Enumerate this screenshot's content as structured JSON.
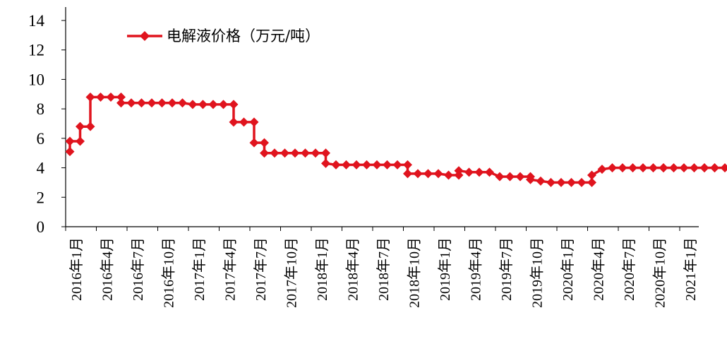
{
  "chart_data": {
    "type": "line",
    "title": "",
    "xlabel": "",
    "ylabel": "",
    "ylim": [
      0,
      14
    ],
    "yticks": [
      "0",
      "2",
      "4",
      "6",
      "8",
      "10",
      "12",
      "14"
    ],
    "xtick_labels": [
      "2016年1月",
      "2016年4月",
      "2016年7月",
      "2016年10月",
      "2017年1月",
      "2017年4月",
      "2017年7月",
      "2017年10月",
      "2018年1月",
      "2018年4月",
      "2018年7月",
      "2018年10月",
      "2019年1月",
      "2019年4月",
      "2019年7月",
      "2019年10月",
      "2020年1月",
      "2020年4月",
      "2020年7月",
      "2020年10月",
      "2021年1月"
    ],
    "grid": false,
    "legend_position": "top-left",
    "series": [
      {
        "name": "电解液价格（万元/吨）",
        "color": "#e0141e",
        "x": [
          0,
          0,
          1,
          1,
          2,
          2,
          3,
          4,
          5,
          5,
          6,
          7,
          8,
          9,
          10,
          11,
          12,
          13,
          14,
          15,
          16,
          16,
          17,
          18,
          18,
          19,
          19,
          20,
          21,
          22,
          23,
          24,
          25,
          25,
          26,
          27,
          28,
          29,
          30,
          31,
          32,
          33,
          33,
          34,
          35,
          36,
          37,
          38,
          38,
          39,
          40,
          41,
          42,
          43,
          44,
          45,
          45,
          46,
          47,
          48,
          49,
          50,
          51,
          51,
          52,
          53,
          54,
          55,
          56,
          57,
          58,
          58,
          59,
          60,
          61,
          62,
          62,
          63,
          63,
          64
        ],
        "y": [
          5.1,
          5.8,
          5.8,
          6.8,
          6.8,
          8.8,
          8.8,
          8.8,
          8.8,
          8.4,
          8.4,
          8.4,
          8.4,
          8.4,
          8.4,
          8.4,
          8.3,
          8.3,
          8.3,
          8.3,
          8.3,
          7.1,
          7.1,
          7.1,
          5.7,
          5.7,
          5.0,
          5.0,
          5.0,
          5.0,
          5.0,
          5.0,
          5.0,
          4.3,
          4.2,
          4.2,
          4.2,
          4.2,
          4.2,
          4.2,
          4.2,
          4.2,
          3.6,
          3.6,
          3.6,
          3.6,
          3.5,
          3.5,
          3.8,
          3.7,
          3.7,
          3.7,
          3.4,
          3.4,
          3.4,
          3.4,
          3.2,
          3.1,
          3.0,
          3.0,
          3.0,
          3.0,
          3.0,
          3.5,
          3.9,
          4.0,
          4.0,
          4.0,
          4.0,
          4.0,
          4.0,
          4.0,
          4.0,
          4.0,
          4.0,
          4.0,
          4.0,
          4.0,
          4.0,
          4.0
        ]
      }
    ]
  }
}
